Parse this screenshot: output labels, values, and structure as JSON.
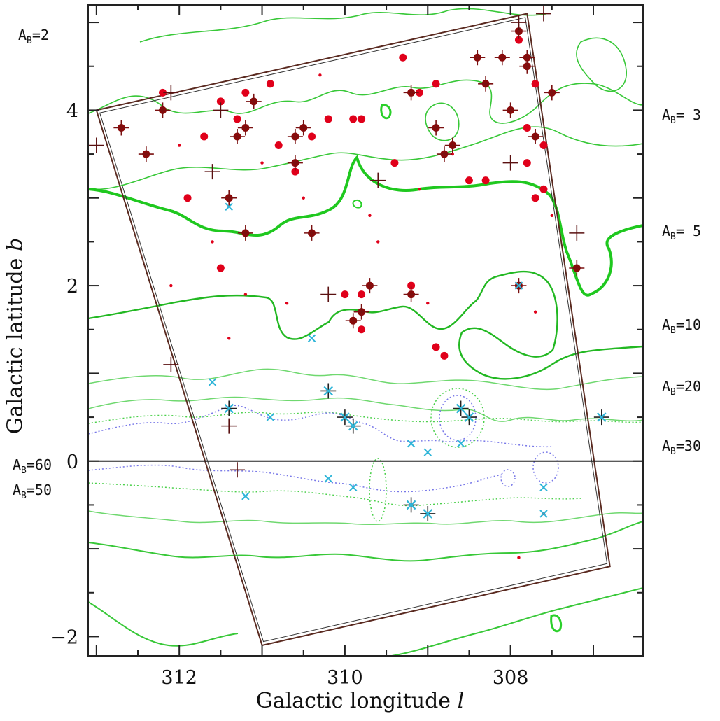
{
  "chart_data": {
    "type": "scatter",
    "xlabel": "Galactic longitude",
    "xlabel_var": "l",
    "ylabel": "Galactic latitude",
    "ylabel_var": "b",
    "xlim": [
      313.1,
      306.4
    ],
    "ylim": [
      -2.22,
      5.2
    ],
    "xticks": [
      312,
      310,
      308
    ],
    "yticks": [
      -2,
      0,
      2,
      4
    ],
    "grid": false,
    "horizontal_line_b": 0,
    "extinction_labels_right": [
      {
        "label": "A",
        "sub": "B",
        "value": "= 3"
      },
      {
        "label": "A",
        "sub": "B",
        "value": "= 5"
      },
      {
        "label": "A",
        "sub": "B",
        "value": "=10"
      },
      {
        "label": "A",
        "sub": "B",
        "value": "=20"
      },
      {
        "label": "A",
        "sub": "B",
        "value": "=30"
      }
    ],
    "extinction_labels_left": [
      {
        "label": "A",
        "sub": "B",
        "value": "=2"
      },
      {
        "label": "A",
        "sub": "B",
        "value": "=60"
      },
      {
        "label": "A",
        "sub": "B",
        "value": "=50"
      }
    ],
    "survey_boundary": [
      [
        313.0,
        4.0
      ],
      [
        307.8,
        5.1
      ],
      [
        306.8,
        -1.2
      ],
      [
        311.0,
        -2.1
      ]
    ],
    "series": [
      {
        "marker": "large-dot",
        "color": "#e0001a",
        "points": [
          [
            312.2,
            4.2
          ],
          [
            311.5,
            4.1
          ],
          [
            311.2,
            4.2
          ],
          [
            311.7,
            3.7
          ],
          [
            311.9,
            3.0
          ],
          [
            311.3,
            3.9
          ],
          [
            310.9,
            4.3
          ],
          [
            310.8,
            3.6
          ],
          [
            310.4,
            3.7
          ],
          [
            310.6,
            3.3
          ],
          [
            310.2,
            3.9
          ],
          [
            309.9,
            3.9
          ],
          [
            309.8,
            3.9
          ],
          [
            309.3,
            4.6
          ],
          [
            308.9,
            4.3
          ],
          [
            309.1,
            4.2
          ],
          [
            309.4,
            3.4
          ],
          [
            308.5,
            3.2
          ],
          [
            308.3,
            3.2
          ],
          [
            307.9,
            4.8
          ],
          [
            307.7,
            4.3
          ],
          [
            307.8,
            3.8
          ],
          [
            307.6,
            3.6
          ],
          [
            307.8,
            3.4
          ],
          [
            307.6,
            3.1
          ],
          [
            307.7,
            3.0
          ],
          [
            311.5,
            2.2
          ],
          [
            310.0,
            1.9
          ],
          [
            309.2,
            2.0
          ],
          [
            308.9,
            1.3
          ],
          [
            308.8,
            1.2
          ],
          [
            309.8,
            1.5
          ],
          [
            309.8,
            1.9
          ]
        ]
      },
      {
        "marker": "small-dot",
        "color": "#e0001a",
        "points": [
          [
            312.0,
            3.6
          ],
          [
            311.6,
            2.5
          ],
          [
            311.0,
            3.4
          ],
          [
            310.5,
            3.0
          ],
          [
            310.3,
            4.4
          ],
          [
            309.7,
            2.8
          ],
          [
            309.6,
            2.5
          ],
          [
            309.1,
            3.1
          ],
          [
            308.7,
            3.5
          ],
          [
            307.5,
            2.8
          ],
          [
            311.2,
            1.9
          ],
          [
            310.7,
            1.8
          ],
          [
            309.0,
            1.8
          ],
          [
            307.7,
            1.7
          ],
          [
            307.9,
            -1.1
          ],
          [
            307.6,
            -0.6
          ],
          [
            312.1,
            2.0
          ],
          [
            311.4,
            1.4
          ]
        ]
      },
      {
        "marker": "plus-dot",
        "color": "#7a1010",
        "points": [
          [
            312.7,
            3.8
          ],
          [
            312.4,
            3.5
          ],
          [
            312.2,
            4.0
          ],
          [
            311.4,
            3.0
          ],
          [
            311.3,
            3.7
          ],
          [
            311.2,
            3.8
          ],
          [
            311.1,
            4.1
          ],
          [
            310.6,
            3.4
          ],
          [
            310.5,
            3.8
          ],
          [
            310.6,
            3.7
          ],
          [
            310.4,
            2.6
          ],
          [
            311.2,
            2.6
          ],
          [
            309.2,
            4.2
          ],
          [
            308.9,
            3.8
          ],
          [
            308.8,
            3.5
          ],
          [
            308.7,
            3.6
          ],
          [
            308.4,
            4.6
          ],
          [
            308.1,
            4.6
          ],
          [
            308.0,
            4.0
          ],
          [
            307.9,
            4.9
          ],
          [
            307.8,
            4.6
          ],
          [
            307.8,
            4.5
          ],
          [
            307.7,
            3.7
          ],
          [
            307.5,
            4.2
          ],
          [
            308.3,
            4.3
          ],
          [
            307.2,
            2.2
          ],
          [
            309.7,
            2.0
          ],
          [
            309.8,
            1.7
          ],
          [
            309.9,
            1.6
          ],
          [
            309.2,
            1.9
          ],
          [
            307.9,
            2.0
          ]
        ]
      },
      {
        "marker": "plus",
        "color": "#5a1010",
        "points": [
          [
            313.0,
            3.6
          ],
          [
            312.1,
            4.2
          ],
          [
            311.5,
            4.0
          ],
          [
            311.6,
            3.3
          ],
          [
            310.2,
            1.9
          ],
          [
            309.6,
            3.2
          ],
          [
            308.0,
            3.4
          ],
          [
            307.9,
            5.0
          ],
          [
            307.6,
            5.1
          ],
          [
            312.1,
            1.1
          ],
          [
            311.4,
            0.4
          ],
          [
            311.3,
            -0.1
          ],
          [
            307.2,
            2.6
          ]
        ]
      },
      {
        "marker": "cross",
        "color": "#2fb5d8",
        "points": [
          [
            311.4,
            2.9
          ],
          [
            310.4,
            1.4
          ],
          [
            311.6,
            0.9
          ],
          [
            310.9,
            0.5
          ],
          [
            309.9,
            0.4
          ],
          [
            309.2,
            0.2
          ],
          [
            309.0,
            0.1
          ],
          [
            308.6,
            0.2
          ],
          [
            311.2,
            -0.4
          ],
          [
            310.2,
            -0.2
          ],
          [
            309.9,
            -0.3
          ],
          [
            307.6,
            -0.3
          ],
          [
            307.6,
            -0.6
          ],
          [
            307.9,
            2.0
          ]
        ]
      },
      {
        "marker": "plus-cross",
        "color": "#2fb5d8",
        "points": [
          [
            311.4,
            0.6
          ],
          [
            310.2,
            0.8
          ],
          [
            310.0,
            0.5
          ],
          [
            309.9,
            0.4
          ],
          [
            308.6,
            0.6
          ],
          [
            308.5,
            0.5
          ],
          [
            309.2,
            -0.5
          ],
          [
            309.0,
            -0.6
          ],
          [
            306.9,
            0.5
          ]
        ]
      }
    ]
  }
}
